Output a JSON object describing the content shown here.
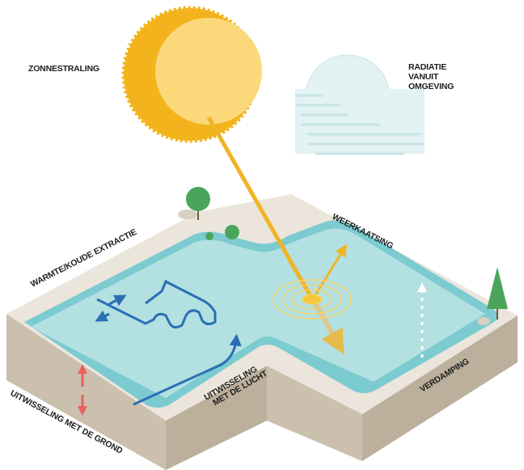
{
  "labels": {
    "solar": "ZONNESTRALING",
    "ambient": [
      "RADIATIE",
      "VANUIT",
      "OMGEVING"
    ],
    "reflection": "WEERKAATSING",
    "extraction": "WARMTE/KOUDE EXTRACTIE",
    "ground": "UITWISSELING MET DE GROND",
    "air": [
      "UITWISSELING",
      "MET DE LUCHT"
    ],
    "evaporation": "VERDAMPING"
  }
}
